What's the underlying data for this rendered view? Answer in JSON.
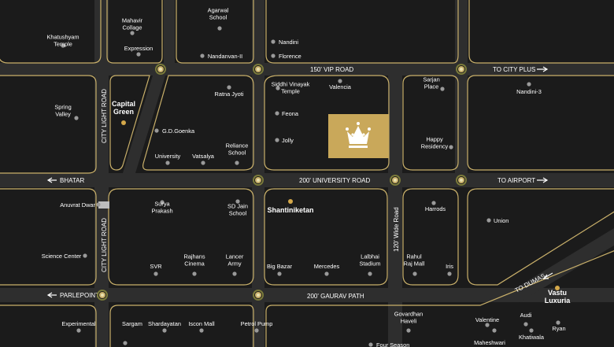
{
  "colors": {
    "background": "#1b1b1b",
    "road": "#2e2e2e",
    "road_edge": "#c9b06a",
    "label": "#ffffff",
    "dot": "#9a9a9a",
    "accent_dot": "#d4a84a",
    "project_block": "#c9a85a"
  },
  "roads": {
    "vip": "150' VIP ROAD",
    "university": "200' UNIVERSITY ROAD",
    "gaurav": "200' GAURAV PATH",
    "city_light_1": "CITY LIGHT ROAD",
    "city_light_2": "CITY LIGHT ROAD",
    "wide_120": "120' Wide Road"
  },
  "directions": {
    "city_plus": "TO CITY PLUS",
    "airport": "TO AIRPORT",
    "bhatar": "BHATAR",
    "parlepoint": "PARLEPOINT",
    "dumas": "TO DUMAS"
  },
  "landmarks": {
    "mahavir": "Mahavir\nCollage",
    "agarwal": "Agarwal\nSchool",
    "khatushyam": "Khatushyam\nTemple",
    "expression": "Expression",
    "nandanvan": "Nandanvan-II",
    "nandini": "Nandini",
    "florence": "Florence",
    "siddhi": "Siddhi Vinayak\nTemple",
    "valencia": "Valencia",
    "sarjan": "Sarjan\nPlace",
    "nandini3": "Nandini-3",
    "ratna": "Ratna Jyoti",
    "spring": "Spring\nValley",
    "gdgoenka": "G.D.Goenka",
    "feona": "Feona",
    "jolly": "Jolly",
    "happy": "Happy\nResidency",
    "university": "University",
    "vatsalya": "Vatsalya",
    "reliance": "Reliance\nSchool",
    "anuvrat": "Anuvrat Dwar",
    "surya": "Surya\nPrakash",
    "sdjain": "SD Jain\nSchool",
    "harrods": "Harrods",
    "union": "Union",
    "science": "Science Center",
    "svr": "SVR",
    "rajhans": "Rajhans\nCinema",
    "lancer": "Lancer\nArmy",
    "bigbazar": "Big Bazar",
    "mercedes": "Mercedes",
    "lalbhai": "Lalbhai\nStadium",
    "rahul": "Rahul\nRaj Mall",
    "iris": "Iris",
    "experimental": "Experimental",
    "sargam": "Sargam",
    "shardayatan": "Shardayatan",
    "iscon": "Iscon Mall",
    "petrol": "Petrol Pump",
    "govardhan": "Govardhan\nHaveli",
    "valentine": "Valentine",
    "audi": "Audi",
    "ryan": "Ryan",
    "khatiwala": "Khatiwala",
    "maheshwari": "Maheshwari",
    "fourseason": "Four Season"
  },
  "highlights": {
    "capital_green": "Capital\nGreen",
    "shantiniketan": "Shantiniketan",
    "vastu": "Vastu\nLuxuria"
  }
}
